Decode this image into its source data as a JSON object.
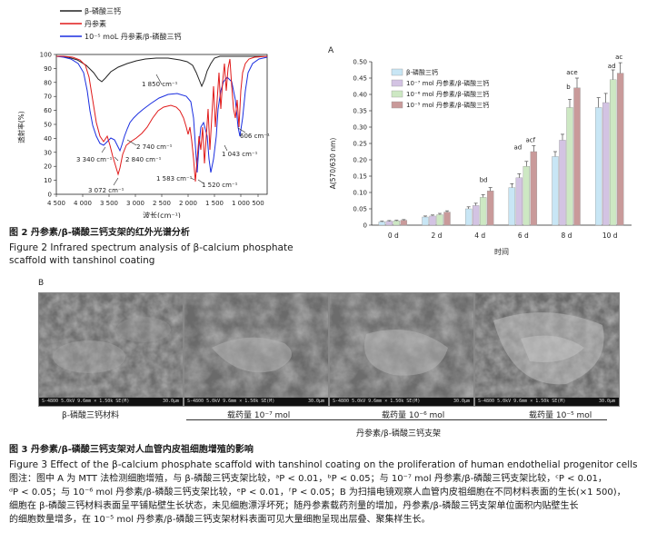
{
  "fig2": {
    "legend": [
      "β-磷酸三钙",
      "丹参素",
      "10⁻⁵ moL 丹参素/β-磷酸三钙"
    ],
    "legend_colors": [
      "#222222",
      "#e01a1a",
      "#1a2ee0"
    ],
    "ylabel": "透射率(%)",
    "xlabel": "波长(cm⁻¹)",
    "yticks": [
      "0",
      "10",
      "20",
      "30",
      "40",
      "50",
      "60",
      "70",
      "80",
      "90",
      "100"
    ],
    "xticks": [
      "4 500",
      "4 000",
      "3 500",
      "3 000",
      "2 500",
      "2 000",
      "1 500",
      "1 000",
      "500"
    ],
    "annotations": [
      "1 850 cm⁻¹",
      "2 740 cm⁻¹",
      "3 340 cm⁻¹",
      "2 840 cm⁻¹",
      "606 cm⁻¹",
      "1 043 cm⁻¹",
      "3 072 cm⁻¹",
      "1 583 cm⁻¹",
      "1 520 cm⁻¹"
    ],
    "caption_cn": "图 2   丹参素/β-磷酸三钙支架的红外光谱分析",
    "caption_en1": "Figure 2   Infrared spectrum analysis of β-calcium phosphate",
    "caption_en2": "scaffold with tanshinol coating"
  },
  "fig3a": {
    "panel": "A",
    "ylabel": "A(570/630 nm)",
    "xlabel": "时间",
    "yticks": [
      "0",
      "0.05",
      "0.10",
      "0.15",
      "0.20",
      "0.25",
      "0.30",
      "0.35",
      "0.40",
      "0.45",
      "0.50"
    ],
    "legend": [
      "β-磷酸三钙",
      "10⁻⁷ mol 丹参素/β-磷酸三钙",
      "10⁻⁶ mol 丹参素/β-磷酸三钙",
      "10⁻⁵ mol 丹参素/β-磷酸三钙"
    ],
    "colors": [
      "#c8e6f5",
      "#d3c3e3",
      "#cde8c3",
      "#c99a9a"
    ],
    "sig_labels": [
      "bd",
      "ad",
      "acf",
      "b",
      "ace",
      "ad",
      "ac"
    ]
  },
  "chart_data": {
    "type": "bar",
    "categories": [
      "0 d",
      "2 d",
      "4 d",
      "6 d",
      "8 d",
      "10 d"
    ],
    "series": [
      {
        "name": "β-磷酸三钙",
        "values": [
          0.01,
          0.025,
          0.05,
          0.115,
          0.21,
          0.36
        ]
      },
      {
        "name": "10⁻⁷ mol 丹参素/β-磷酸三钙",
        "values": [
          0.012,
          0.028,
          0.06,
          0.145,
          0.26,
          0.375
        ]
      },
      {
        "name": "10⁻⁶ mol 丹参素/β-磷酸三钙",
        "values": [
          0.013,
          0.032,
          0.085,
          0.18,
          0.36,
          0.445
        ]
      },
      {
        "name": "10⁻⁵ mol 丹参素/β-磷酸三钙",
        "values": [
          0.015,
          0.04,
          0.105,
          0.225,
          0.42,
          0.465
        ]
      }
    ],
    "errors": [
      [
        0.002,
        0.003,
        0.006,
        0.012,
        0.015,
        0.03
      ],
      [
        0.002,
        0.003,
        0.007,
        0.012,
        0.018,
        0.028
      ],
      [
        0.002,
        0.004,
        0.008,
        0.015,
        0.025,
        0.03
      ],
      [
        0.002,
        0.004,
        0.01,
        0.018,
        0.03,
        0.032
      ]
    ],
    "xlabel": "时间",
    "ylabel": "A(570/630 nm)",
    "ylim": [
      0,
      0.5
    ]
  },
  "fig3b": {
    "panel": "B",
    "labels": [
      "β-磷酸三钙材料",
      "载药量 10⁻⁷ mol",
      "载药量 10⁻⁶ mol",
      "载药量 10⁻⁵ mol"
    ],
    "group_label": "丹参素/β-磷酸三钙支架",
    "scale_left": "S-4800 5.0kV 9.6mm × 1.50k SE(M)",
    "scale_right": "30.0μm"
  },
  "fig3": {
    "caption_cn": "图 3   丹参素/β-磷酸三钙支架对人血管内皮祖细胞增殖的影响",
    "caption_en": "Figure 3   Effect of the β-calcium phosphate scaffold with tanshinol coating on the proliferation of human endothelial progenitor cells",
    "note1": "图注：图中 A 为 MTT 法检测细胞增殖，与 β-磷酸三钙支架比较，ᵃP < 0.01，ᵇP < 0.05；与 10⁻⁷ mol 丹参素/β-磷酸三钙支架比较，ᶜP < 0.01，",
    "note2": "ᵈP < 0.05；与 10⁻⁶ mol 丹参素/β-磷酸三钙支架比较，ᵉP < 0.01，ᶠP < 0.05；B 为扫描电镜观察人血管内皮祖细胞在不同材料表面的生长(×1 500)，",
    "note3": "细胞在 β-磷酸三钙材料表面呈平铺贴壁生长状态，未见细胞漂浮坏死；随丹参素载药剂量的增加，丹参素/β-磷酸三钙支架单位面积内贴壁生长",
    "note4": "的细胞数量增多，在 10⁻⁵ mol 丹参素/β-磷酸三钙支架材料表面可见大量细胞呈现出层叠、聚集样生长。"
  }
}
